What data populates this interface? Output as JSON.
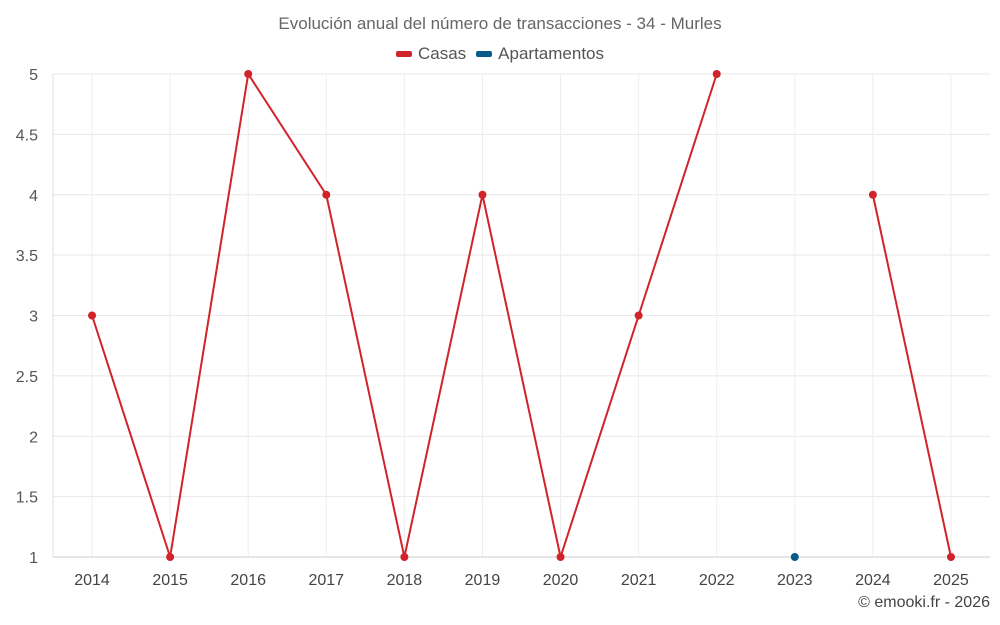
{
  "chart_data": {
    "type": "line",
    "title": "Evolución anual del número de transacciones - 34 - Murles",
    "categories": [
      "2014",
      "2015",
      "2016",
      "2017",
      "2018",
      "2019",
      "2020",
      "2021",
      "2022",
      "2023",
      "2024",
      "2025"
    ],
    "series": [
      {
        "name": "Casas",
        "color": "#d0232a",
        "values": [
          3,
          1,
          5,
          4,
          1,
          4,
          1,
          3,
          5,
          null,
          4,
          1
        ]
      },
      {
        "name": "Apartamentos",
        "color": "#0a5a8a",
        "values": [
          null,
          null,
          null,
          null,
          null,
          null,
          null,
          null,
          null,
          1,
          null,
          null
        ]
      }
    ],
    "yticks": [
      "1",
      "1.5",
      "2",
      "2.5",
      "3",
      "3.5",
      "4",
      "4.5",
      "5"
    ],
    "ylim": [
      1,
      5
    ],
    "xlabel": "",
    "ylabel": "",
    "grid": true,
    "legend_position": "top-center"
  },
  "credit": "© emooki.fr - 2026"
}
